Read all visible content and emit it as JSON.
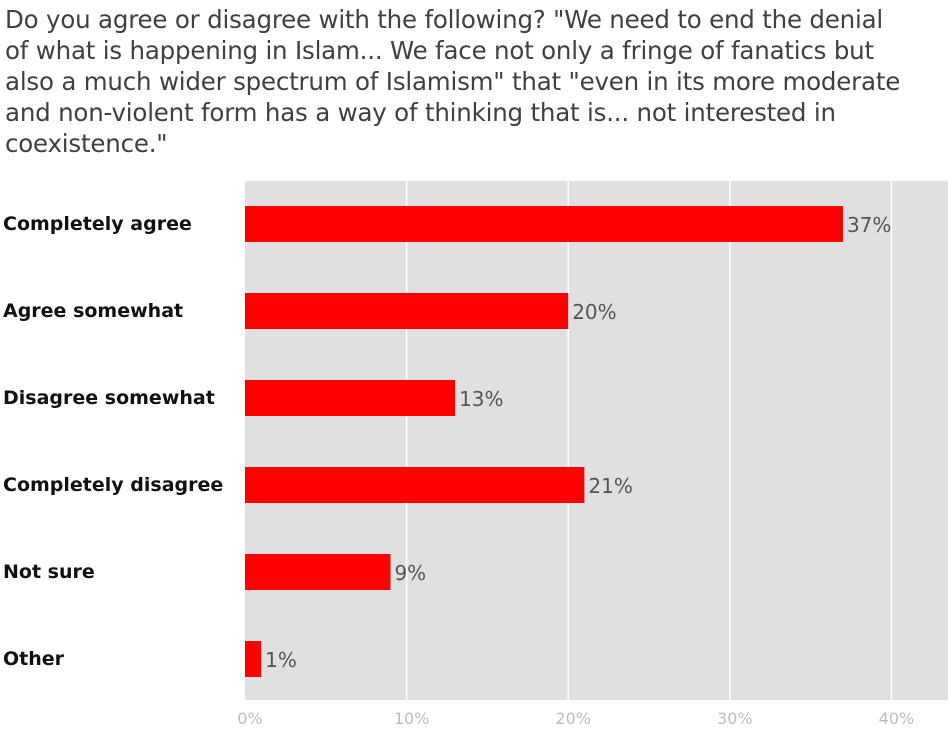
{
  "chart_data": {
    "type": "bar",
    "orientation": "horizontal",
    "title": "Do you agree or disagree with the following? \"We need to end the denial of what is happening in Islam... We face not only a fringe of fanatics but also a much wider spectrum of Islamism\" that \"even in its more moderate and non-violent form has a way of thinking that is... not interested in coexistence.\"",
    "categories": [
      "Completely agree",
      "Agree somewhat",
      "Disagree somewhat",
      "Completely disagree",
      "Not sure",
      "Other"
    ],
    "values": [
      37,
      20,
      13,
      21,
      9,
      1
    ],
    "value_labels": [
      "37%",
      "20%",
      "13%",
      "21%",
      "9%",
      "1%"
    ],
    "xlim": [
      0,
      43.5
    ],
    "xticks": [
      0,
      10,
      20,
      30,
      40
    ],
    "xtick_labels": [
      "0%",
      "10%",
      "20%",
      "30%",
      "40%"
    ],
    "grid": true,
    "bar_color": "#ff0000",
    "plot_background": "#e0e0e0",
    "grid_color": "#ffffff"
  }
}
